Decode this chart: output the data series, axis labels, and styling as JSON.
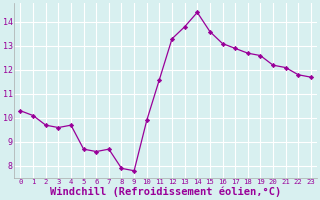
{
  "x": [
    0,
    1,
    2,
    3,
    4,
    5,
    6,
    7,
    8,
    9,
    10,
    11,
    12,
    13,
    14,
    15,
    16,
    17,
    18,
    19,
    20,
    21,
    22,
    23
  ],
  "y": [
    10.3,
    10.1,
    9.7,
    9.6,
    9.7,
    8.7,
    8.6,
    8.7,
    7.9,
    7.8,
    9.9,
    11.6,
    13.3,
    13.8,
    14.4,
    13.6,
    13.1,
    12.9,
    12.7,
    12.6,
    12.2,
    12.1,
    11.8,
    11.7
  ],
  "line_color": "#990099",
  "marker": "D",
  "markersize": 2.2,
  "linewidth": 0.9,
  "xlabel": "Windchill (Refroidissement éolien,°C)",
  "xlabel_fontsize": 7.5,
  "xtick_labels": [
    "0",
    "1",
    "2",
    "3",
    "4",
    "5",
    "6",
    "7",
    "8",
    "9",
    "10",
    "11",
    "12",
    "13",
    "14",
    "15",
    "16",
    "17",
    "18",
    "19",
    "20",
    "21",
    "22",
    "23"
  ],
  "ylim": [
    7.5,
    14.8
  ],
  "yticks": [
    8,
    9,
    10,
    11,
    12,
    13,
    14
  ],
  "bg_color": "#d8f0f0",
  "grid_color": "#b8d8d8",
  "spine_color": "#888888",
  "tick_color": "#990099",
  "label_color": "#990099",
  "figsize": [
    3.2,
    2.0
  ],
  "dpi": 100
}
